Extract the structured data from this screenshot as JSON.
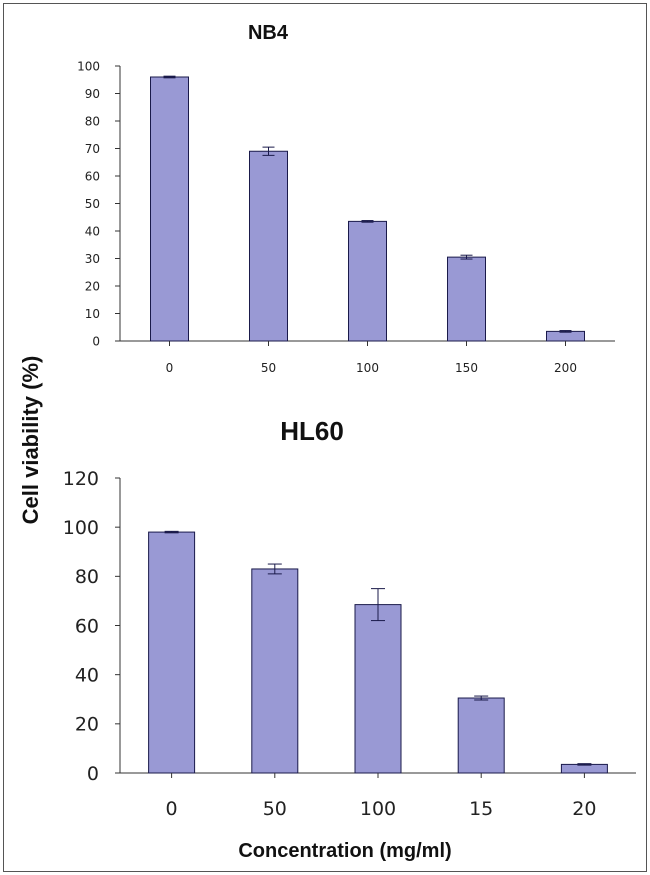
{
  "figure": {
    "ylabel": "Cell viability (%)",
    "xlabel": "Concentration (mg/ml)",
    "bar_color": "#9999d4"
  },
  "chart_data": [
    {
      "type": "bar",
      "title": "NB4",
      "categories": [
        "0",
        "50",
        "100",
        "150",
        "200"
      ],
      "values": [
        96,
        69,
        43.5,
        30.5,
        3.5
      ],
      "errors": [
        0.3,
        1.5,
        0.3,
        0.7,
        0.3
      ],
      "ylim": [
        0,
        100
      ],
      "yticks": [
        0,
        10,
        20,
        30,
        40,
        50,
        60,
        70,
        80,
        90,
        100
      ],
      "ytick_labels": [
        "0",
        "10",
        "20",
        "30",
        "40",
        "50",
        "60",
        "70",
        "80",
        "90",
        "100"
      ],
      "grid": false,
      "legend": "none"
    },
    {
      "type": "bar",
      "title": "HL60",
      "categories": [
        "0",
        "50",
        "100",
        "15",
        "20"
      ],
      "values": [
        98,
        83,
        68.5,
        30.5,
        3.5
      ],
      "errors": [
        0.3,
        2,
        6.5,
        0.8,
        0.3
      ],
      "ylim": [
        0,
        120
      ],
      "yticks": [
        0,
        20,
        40,
        60,
        80,
        100,
        120
      ],
      "ytick_labels": [
        "0",
        "20",
        "40",
        "60",
        "80",
        "100",
        "120"
      ],
      "grid": false,
      "legend": "none"
    }
  ]
}
